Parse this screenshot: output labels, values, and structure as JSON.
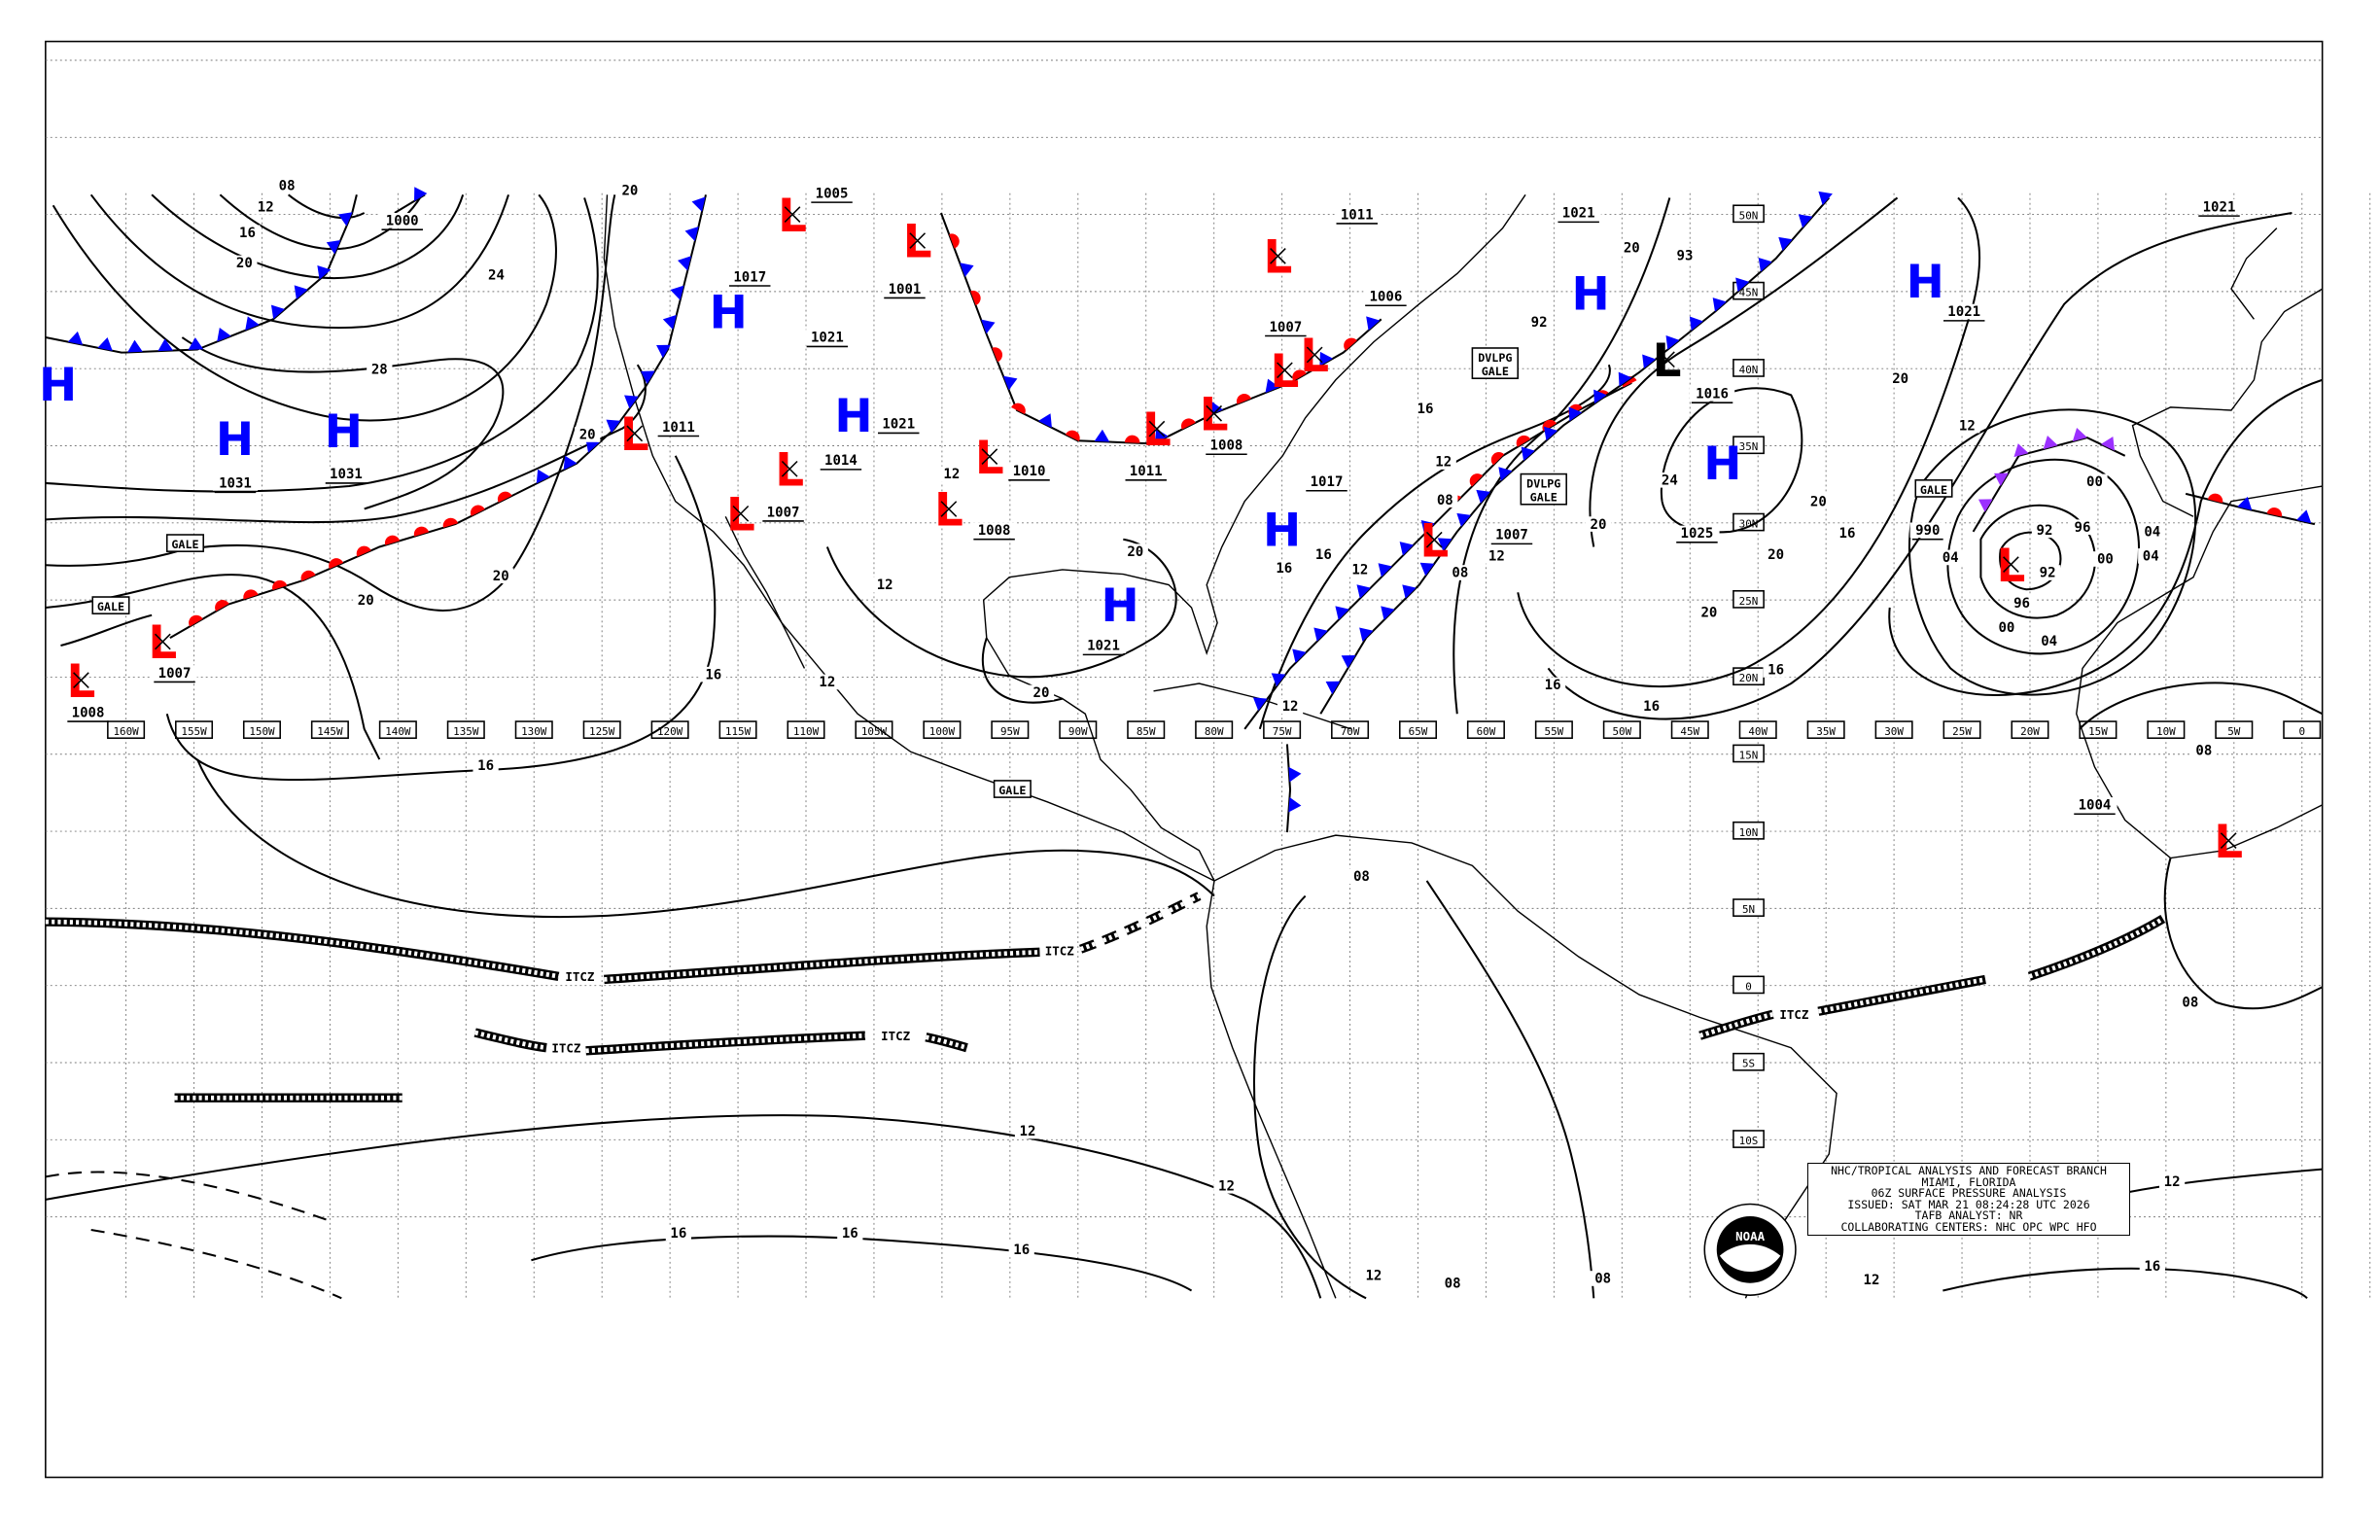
{
  "map": {
    "longitude_labels": [
      "160W",
      "155W",
      "150W",
      "145W",
      "140W",
      "135W",
      "130W",
      "125W",
      "120W",
      "115W",
      "110W",
      "105W",
      "100W",
      "95W",
      "90W",
      "85W",
      "80W",
      "75W",
      "70W",
      "65W",
      "60W",
      "55W",
      "50W",
      "45W",
      "40W",
      "35W",
      "30W",
      "25W",
      "20W",
      "15W",
      "10W",
      "5W",
      "0"
    ],
    "latitude_labels": [
      "50N",
      "45N",
      "40N",
      "35N",
      "30N",
      "25N",
      "20N",
      "15N",
      "10N",
      "5N",
      "0",
      "5S",
      "10S"
    ],
    "colors": {
      "high": "#0000ff",
      "low": "#ff0000",
      "low_black": "#000000",
      "cold_front": "#0000ff",
      "warm_front": "#ff0000",
      "occluded_front": "#9b30ff"
    },
    "pressure_centers": [
      {
        "type": "H",
        "lon": -165,
        "lat": 39,
        "color": "high"
      },
      {
        "type": "H",
        "lon": -152,
        "lat": 35.5,
        "color": "high"
      },
      {
        "type": "H",
        "lon": -144,
        "lat": 36,
        "color": "high"
      },
      {
        "type": "L",
        "lon": -163.3,
        "lat": 19.8,
        "color": "low"
      },
      {
        "type": "L",
        "lon": -157.3,
        "lat": 22.3,
        "color": "low"
      },
      {
        "type": "L",
        "lon": -122.6,
        "lat": 35.8,
        "color": "low"
      },
      {
        "type": "H",
        "lon": -115.7,
        "lat": 43.7,
        "color": "high"
      },
      {
        "type": "L",
        "lon": -111,
        "lat": 50,
        "color": "low"
      },
      {
        "type": "L",
        "lon": -101.8,
        "lat": 48.3,
        "color": "low"
      },
      {
        "type": "H",
        "lon": -106.5,
        "lat": 37,
        "color": "high"
      },
      {
        "type": "L",
        "lon": -111.2,
        "lat": 33.5,
        "color": "low"
      },
      {
        "type": "L",
        "lon": -114.8,
        "lat": 30.6,
        "color": "low"
      },
      {
        "type": "L",
        "lon": -96.5,
        "lat": 34.3,
        "color": "low"
      },
      {
        "type": "L",
        "lon": -99.5,
        "lat": 30.9,
        "color": "low"
      },
      {
        "type": "L",
        "lon": -84.2,
        "lat": 36.1,
        "color": "low"
      },
      {
        "type": "L",
        "lon": -80,
        "lat": 37.1,
        "color": "low"
      },
      {
        "type": "L",
        "lon": -75.3,
        "lat": 47.3,
        "color": "low"
      },
      {
        "type": "L",
        "lon": -74.8,
        "lat": 39.9,
        "color": "low"
      },
      {
        "type": "L",
        "lon": -72.6,
        "lat": 40.9,
        "color": "low"
      },
      {
        "type": "H",
        "lon": -75,
        "lat": 29.6,
        "color": "high"
      },
      {
        "type": "H",
        "lon": -86.9,
        "lat": 24.7,
        "color": "high"
      },
      {
        "type": "L",
        "lon": -63.8,
        "lat": 28.9,
        "color": "low"
      },
      {
        "type": "H",
        "lon": -52.3,
        "lat": 44.9,
        "color": "high"
      },
      {
        "type": "L",
        "lon": -46.7,
        "lat": 40.6,
        "color": "low_black"
      },
      {
        "type": "H",
        "lon": -42.6,
        "lat": 33.9,
        "color": "high"
      },
      {
        "type": "H",
        "lon": -27.7,
        "lat": 45.7,
        "color": "high"
      },
      {
        "type": "L",
        "lon": -21.4,
        "lat": 27.3,
        "color": "low"
      },
      {
        "type": "L",
        "lon": -5.4,
        "lat": 9.4,
        "color": "low"
      }
    ],
    "isobar_labels": [
      "08",
      "12",
      "16",
      "20",
      "24",
      "28",
      "20",
      "20",
      "20",
      "20",
      "16",
      "16",
      "12",
      "12",
      "12",
      "20",
      "20",
      "16",
      "16",
      "12",
      "12",
      "16",
      "12",
      "08",
      "08",
      "12",
      "20",
      "24",
      "20",
      "20",
      "20",
      "20",
      "20",
      "16",
      "16",
      "16",
      "16",
      "12",
      "04",
      "00",
      "96",
      "96",
      "00",
      "04",
      "04",
      "00",
      "04",
      "08",
      "08",
      "08",
      "12",
      "12",
      "16",
      "16",
      "16",
      "12",
      "08",
      "08",
      "12",
      "12",
      "16",
      "1000",
      "1031",
      "1031",
      "1008",
      "1007",
      "1011",
      "1017",
      "1021",
      "1005",
      "1001",
      "1021",
      "1014",
      "1007",
      "1010",
      "1008",
      "1011",
      "1008",
      "1017",
      "1021",
      "1007",
      "1016",
      "1025",
      "1021",
      "1021",
      "93",
      "92",
      "990",
      "1006",
      "1007",
      "1011",
      "1004",
      "1021",
      "92",
      "92"
    ],
    "gale_labels": [
      "GALE",
      "GALE",
      "GALE",
      "GALE"
    ],
    "dvlpg_gale_labels": [
      [
        "DVLPG",
        "GALE"
      ],
      [
        "DVLPG",
        "GALE"
      ]
    ],
    "itcz_labels": [
      "ITCZ",
      "ITCZ",
      "ITCZ",
      "ITCZ",
      "ITCZ"
    ],
    "logo_text": "NOAA"
  },
  "info_box": {
    "line1": "NHC/TROPICAL ANALYSIS AND FORECAST BRANCH",
    "line2": "MIAMI, FLORIDA",
    "line3": "06Z SURFACE PRESSURE ANALYSIS",
    "line4": "ISSUED: SAT MAR 21 08:24:28 UTC 2026",
    "line5": "TAFB ANALYST: NR",
    "line6": "COLLABORATING CENTERS: NHC OPC WPC HFO"
  }
}
